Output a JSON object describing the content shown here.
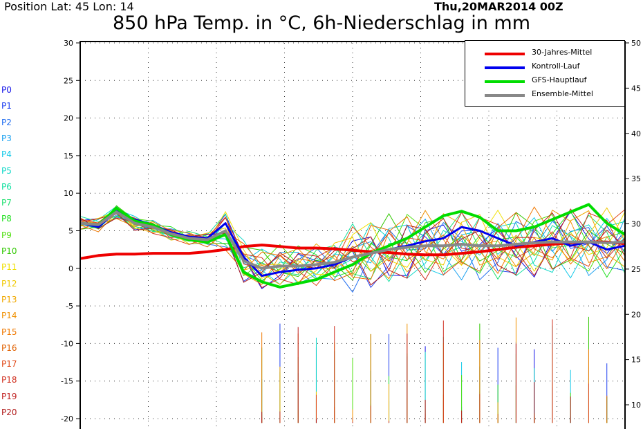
{
  "header": {
    "position": "Position   Lat: 45  Lon: 14",
    "datetime": "Thu,20MAR2014  00Z"
  },
  "chart_data": {
    "type": "line",
    "title": "850 hPa Temp. in °C, 6h-Niederschlag in mm",
    "xlabel": "",
    "ylabel": "",
    "ylim": [
      -22,
      30
    ],
    "y2lim": [
      8,
      50
    ],
    "yticks": [
      30,
      25,
      20,
      15,
      10,
      5,
      0,
      -5,
      -10,
      -15,
      -20
    ],
    "y2ticks": [
      50,
      45,
      40,
      35,
      30,
      25,
      20,
      15,
      10
    ],
    "grid": true,
    "legend_position": "top-right",
    "x_steps": 31,
    "members": [
      "P0",
      "P1",
      "P2",
      "P3",
      "P4",
      "P5",
      "P6",
      "P7",
      "P8",
      "P9",
      "P10",
      "P11",
      "P12",
      "P13",
      "P14",
      "P15",
      "P16",
      "P17",
      "P18",
      "P19",
      "P20"
    ],
    "member_colors": [
      "#1010e8",
      "#1a3cf0",
      "#1e6cf0",
      "#18a0f0",
      "#10c8e8",
      "#10d8c8",
      "#10e0a0",
      "#20e070",
      "#20e020",
      "#50e010",
      "#30c800",
      "#f0e000",
      "#f0c800",
      "#f0a800",
      "#f09000",
      "#f07800",
      "#e06000",
      "#e04818",
      "#d03020",
      "#c02020",
      "#b01818"
    ],
    "series": [
      {
        "name": "30-Jahres-Mittel",
        "color": "#ee0000",
        "width": 4,
        "values": [
          1.3,
          1.7,
          1.9,
          1.9,
          2.0,
          2.0,
          2.0,
          2.2,
          2.5,
          2.9,
          3.1,
          2.9,
          2.7,
          2.7,
          2.6,
          2.4,
          2.2,
          2.1,
          1.9,
          1.8,
          1.8,
          2.0,
          2.2,
          2.5,
          2.8,
          3.0,
          3.2,
          3.4,
          3.5,
          3.5,
          3.3
        ]
      },
      {
        "name": "Kontroll-Lauf",
        "color": "#0000ee",
        "width": 3,
        "values": [
          6.0,
          5.5,
          7.6,
          6.5,
          5.8,
          4.8,
          4.2,
          4.0,
          6.0,
          1.5,
          -1.0,
          -0.5,
          -0.2,
          0.0,
          0.5,
          1.5,
          2.0,
          2.5,
          3.0,
          3.6,
          4.0,
          5.5,
          5.0,
          4.0,
          3.0,
          3.5,
          4.0,
          3.0,
          3.5,
          2.5,
          3.0
        ]
      },
      {
        "name": "GFS-Hauptlauf",
        "color": "#00dd00",
        "width": 4,
        "values": [
          6.0,
          5.8,
          8.0,
          6.3,
          5.8,
          4.5,
          3.8,
          3.5,
          4.5,
          -0.5,
          -1.8,
          -2.5,
          -2.0,
          -1.5,
          -0.5,
          0.5,
          2.0,
          3.0,
          4.0,
          5.5,
          7.0,
          7.6,
          6.8,
          5.0,
          5.0,
          5.5,
          6.5,
          7.5,
          8.5,
          6.0,
          4.5
        ]
      },
      {
        "name": "Ensemble-Mittel",
        "color": "#888888",
        "width": 4,
        "values": [
          6.0,
          5.8,
          7.5,
          6.0,
          5.5,
          4.6,
          4.0,
          3.8,
          5.0,
          1.0,
          0.0,
          0.3,
          0.3,
          0.5,
          0.8,
          1.5,
          2.0,
          2.5,
          2.8,
          3.0,
          3.0,
          3.2,
          3.0,
          3.0,
          3.2,
          3.4,
          3.5,
          3.5,
          3.5,
          3.4,
          3.5
        ]
      }
    ],
    "precip_series": [
      {
        "color": "#20e070",
        "values": [
          0,
          0,
          0,
          0,
          0,
          0,
          0,
          0,
          0,
          0,
          0,
          0,
          0,
          0,
          0,
          0,
          0,
          0,
          0,
          0,
          0,
          0,
          0,
          0,
          0,
          0,
          0,
          0,
          0,
          0,
          0
        ]
      }
    ]
  },
  "legend": {
    "items": [
      {
        "label": "30-Jahres-Mittel",
        "color": "#ee0000"
      },
      {
        "label": "Kontroll-Lauf",
        "color": "#0000ee"
      },
      {
        "label": "GFS-Hauptlauf",
        "color": "#00dd00"
      },
      {
        "label": "Ensemble-Mittel",
        "color": "#888888"
      }
    ]
  }
}
